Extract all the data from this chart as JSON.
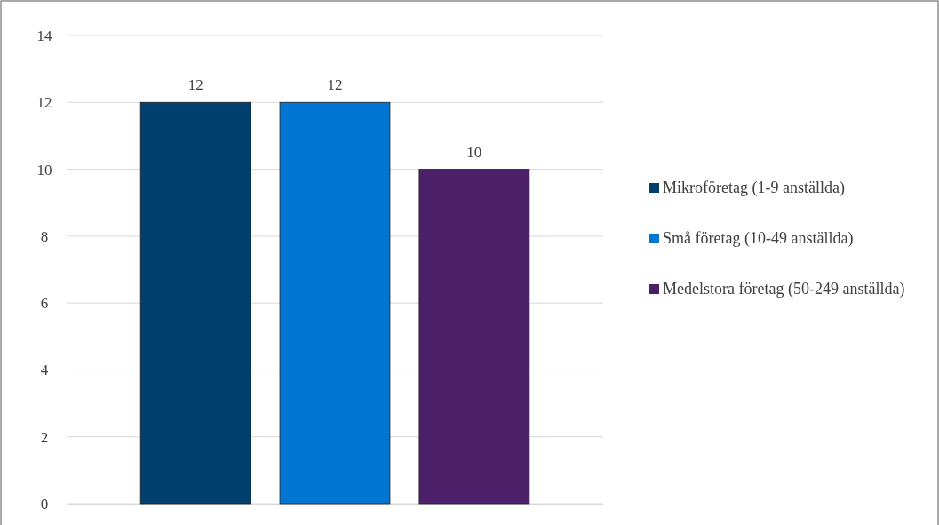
{
  "chart_data": {
    "type": "bar",
    "categories": [
      null
    ],
    "series": [
      {
        "name": "Mikroföretag (1-9 anställda)",
        "color": "#003f6e",
        "values": [
          12
        ]
      },
      {
        "name": "Små företag (10-49 anställda)",
        "color": "#0075d1",
        "values": [
          12
        ]
      },
      {
        "name": "Medelstora företag (50-249 anställda)",
        "color": "#4b2068",
        "values": [
          10
        ]
      }
    ],
    "ylim": [
      0,
      14
    ],
    "yticks": [
      0,
      2,
      4,
      6,
      8,
      10,
      12,
      14
    ],
    "grid": "y",
    "legend": "right",
    "data_labels": true
  }
}
